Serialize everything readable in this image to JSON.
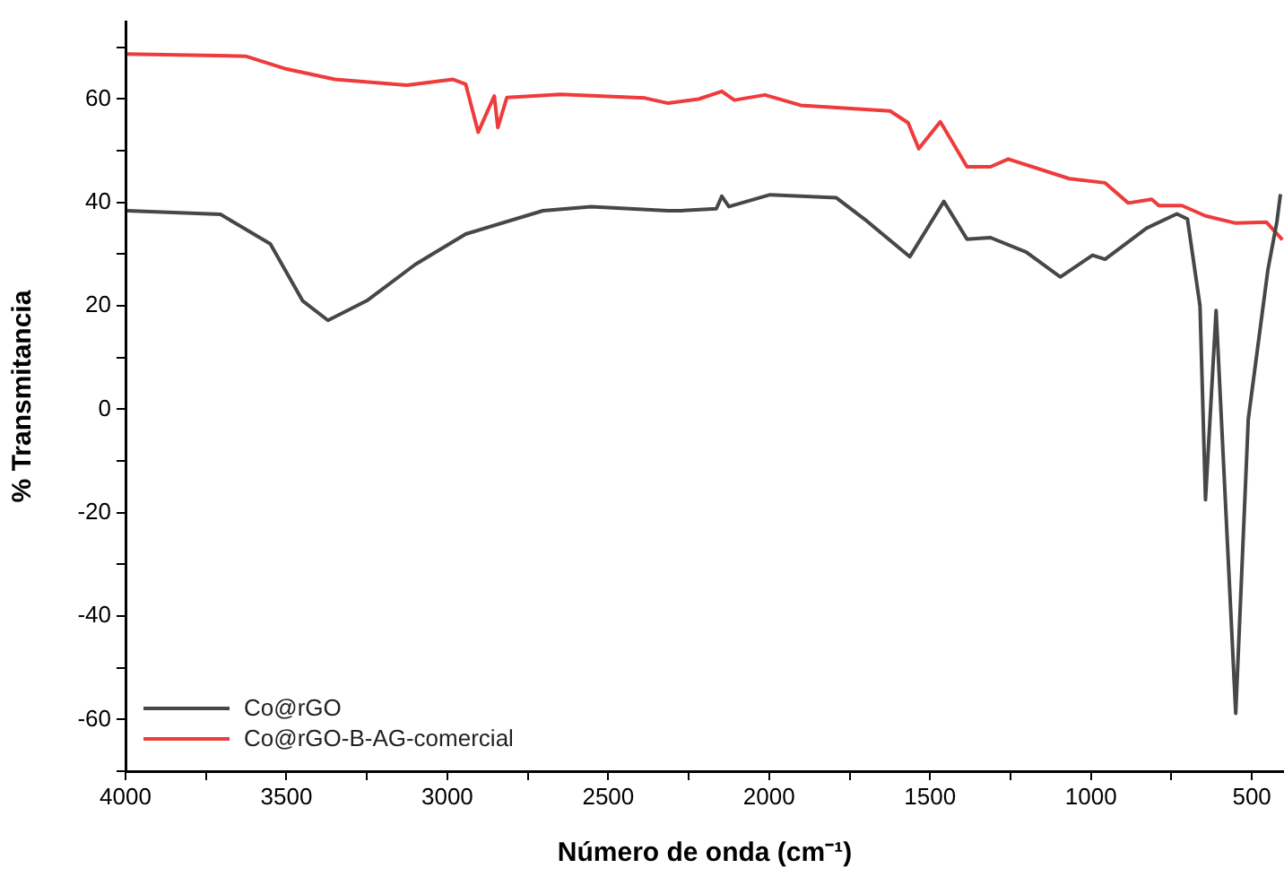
{
  "chart_data": {
    "type": "line",
    "xlabel": "Número de onda (cm⁻¹)",
    "ylabel": "% Transmitancia",
    "xlim": [
      4000,
      400
    ],
    "ylim": [
      -70,
      75
    ],
    "xticks": [
      4000,
      {
        "value": 3750,
        "label": null
      },
      3500,
      {
        "value": 3250,
        "label": null
      },
      3000,
      {
        "value": 2750,
        "label": null
      },
      2500,
      {
        "value": 2250,
        "label": null
      },
      2000,
      {
        "value": 1750,
        "label": null
      },
      1500,
      {
        "value": 1250,
        "label": null
      },
      1000,
      {
        "value": 750,
        "label": null
      },
      500
    ],
    "yticks": [
      {
        "value": -70,
        "label": null
      },
      -60,
      {
        "value": -50,
        "label": null
      },
      -40,
      {
        "value": -30,
        "label": null
      },
      -20,
      {
        "value": -10,
        "label": null
      },
      0,
      {
        "value": 10,
        "label": null
      },
      20,
      {
        "value": 30,
        "label": null
      },
      40,
      {
        "value": 50,
        "label": null
      },
      60,
      {
        "value": 70,
        "label": null
      }
    ],
    "grid": false,
    "legend": "bottom left",
    "marker": "none",
    "line_style": "solid",
    "series": [
      {
        "name": "Co@rGO",
        "color": "#474747",
        "x": [
          3995,
          3705,
          3550,
          3450,
          3371,
          3250,
          3100,
          2943,
          2703,
          2553,
          2314,
          2275,
          2164,
          2147,
          2125,
          1997,
          1791,
          1702,
          1563,
          1457,
          1385,
          1312,
          1201,
          1095,
          995,
          956,
          828,
          733,
          700,
          661,
          644,
          611,
          550,
          511,
          450,
          422,
          411
        ],
        "values": [
          38.4,
          37.7,
          32,
          21,
          17.2,
          21,
          28,
          33.9,
          38.4,
          39.2,
          38.4,
          38.4,
          38.8,
          41.2,
          39.2,
          41.5,
          40.9,
          36.7,
          29.5,
          40.2,
          32.9,
          33.2,
          30.4,
          25.6,
          29.8,
          29,
          35,
          37.8,
          36.8,
          20,
          -17.5,
          19.1,
          -58.8,
          -1.9,
          27,
          36.3,
          41.6
        ]
      },
      {
        "name": "Co@rGO-B-AG-comercial",
        "color": "#ee3b3b",
        "x": [
          3995,
          3627,
          3499,
          3349,
          3126,
          2982,
          2943,
          2904,
          2854,
          2843,
          2815,
          2648,
          2386,
          2314,
          2219,
          2147,
          2108,
          2013,
          1902,
          1624,
          1568,
          1535,
          1468,
          1385,
          1312,
          1257,
          1067,
          956,
          884,
          811,
          789,
          717,
          644,
          550,
          455,
          405
        ],
        "values": [
          68.7,
          68.3,
          65.8,
          63.8,
          62.7,
          63.8,
          62.9,
          53.6,
          60.6,
          54.5,
          60.3,
          60.9,
          60.2,
          59.2,
          60,
          61.5,
          59.8,
          60.8,
          58.8,
          57.7,
          55.4,
          50.4,
          55.6,
          46.9,
          46.9,
          48.4,
          44.6,
          43.8,
          39.9,
          40.6,
          39.4,
          39.4,
          37.4,
          36,
          36.2,
          32.8
        ]
      }
    ]
  }
}
